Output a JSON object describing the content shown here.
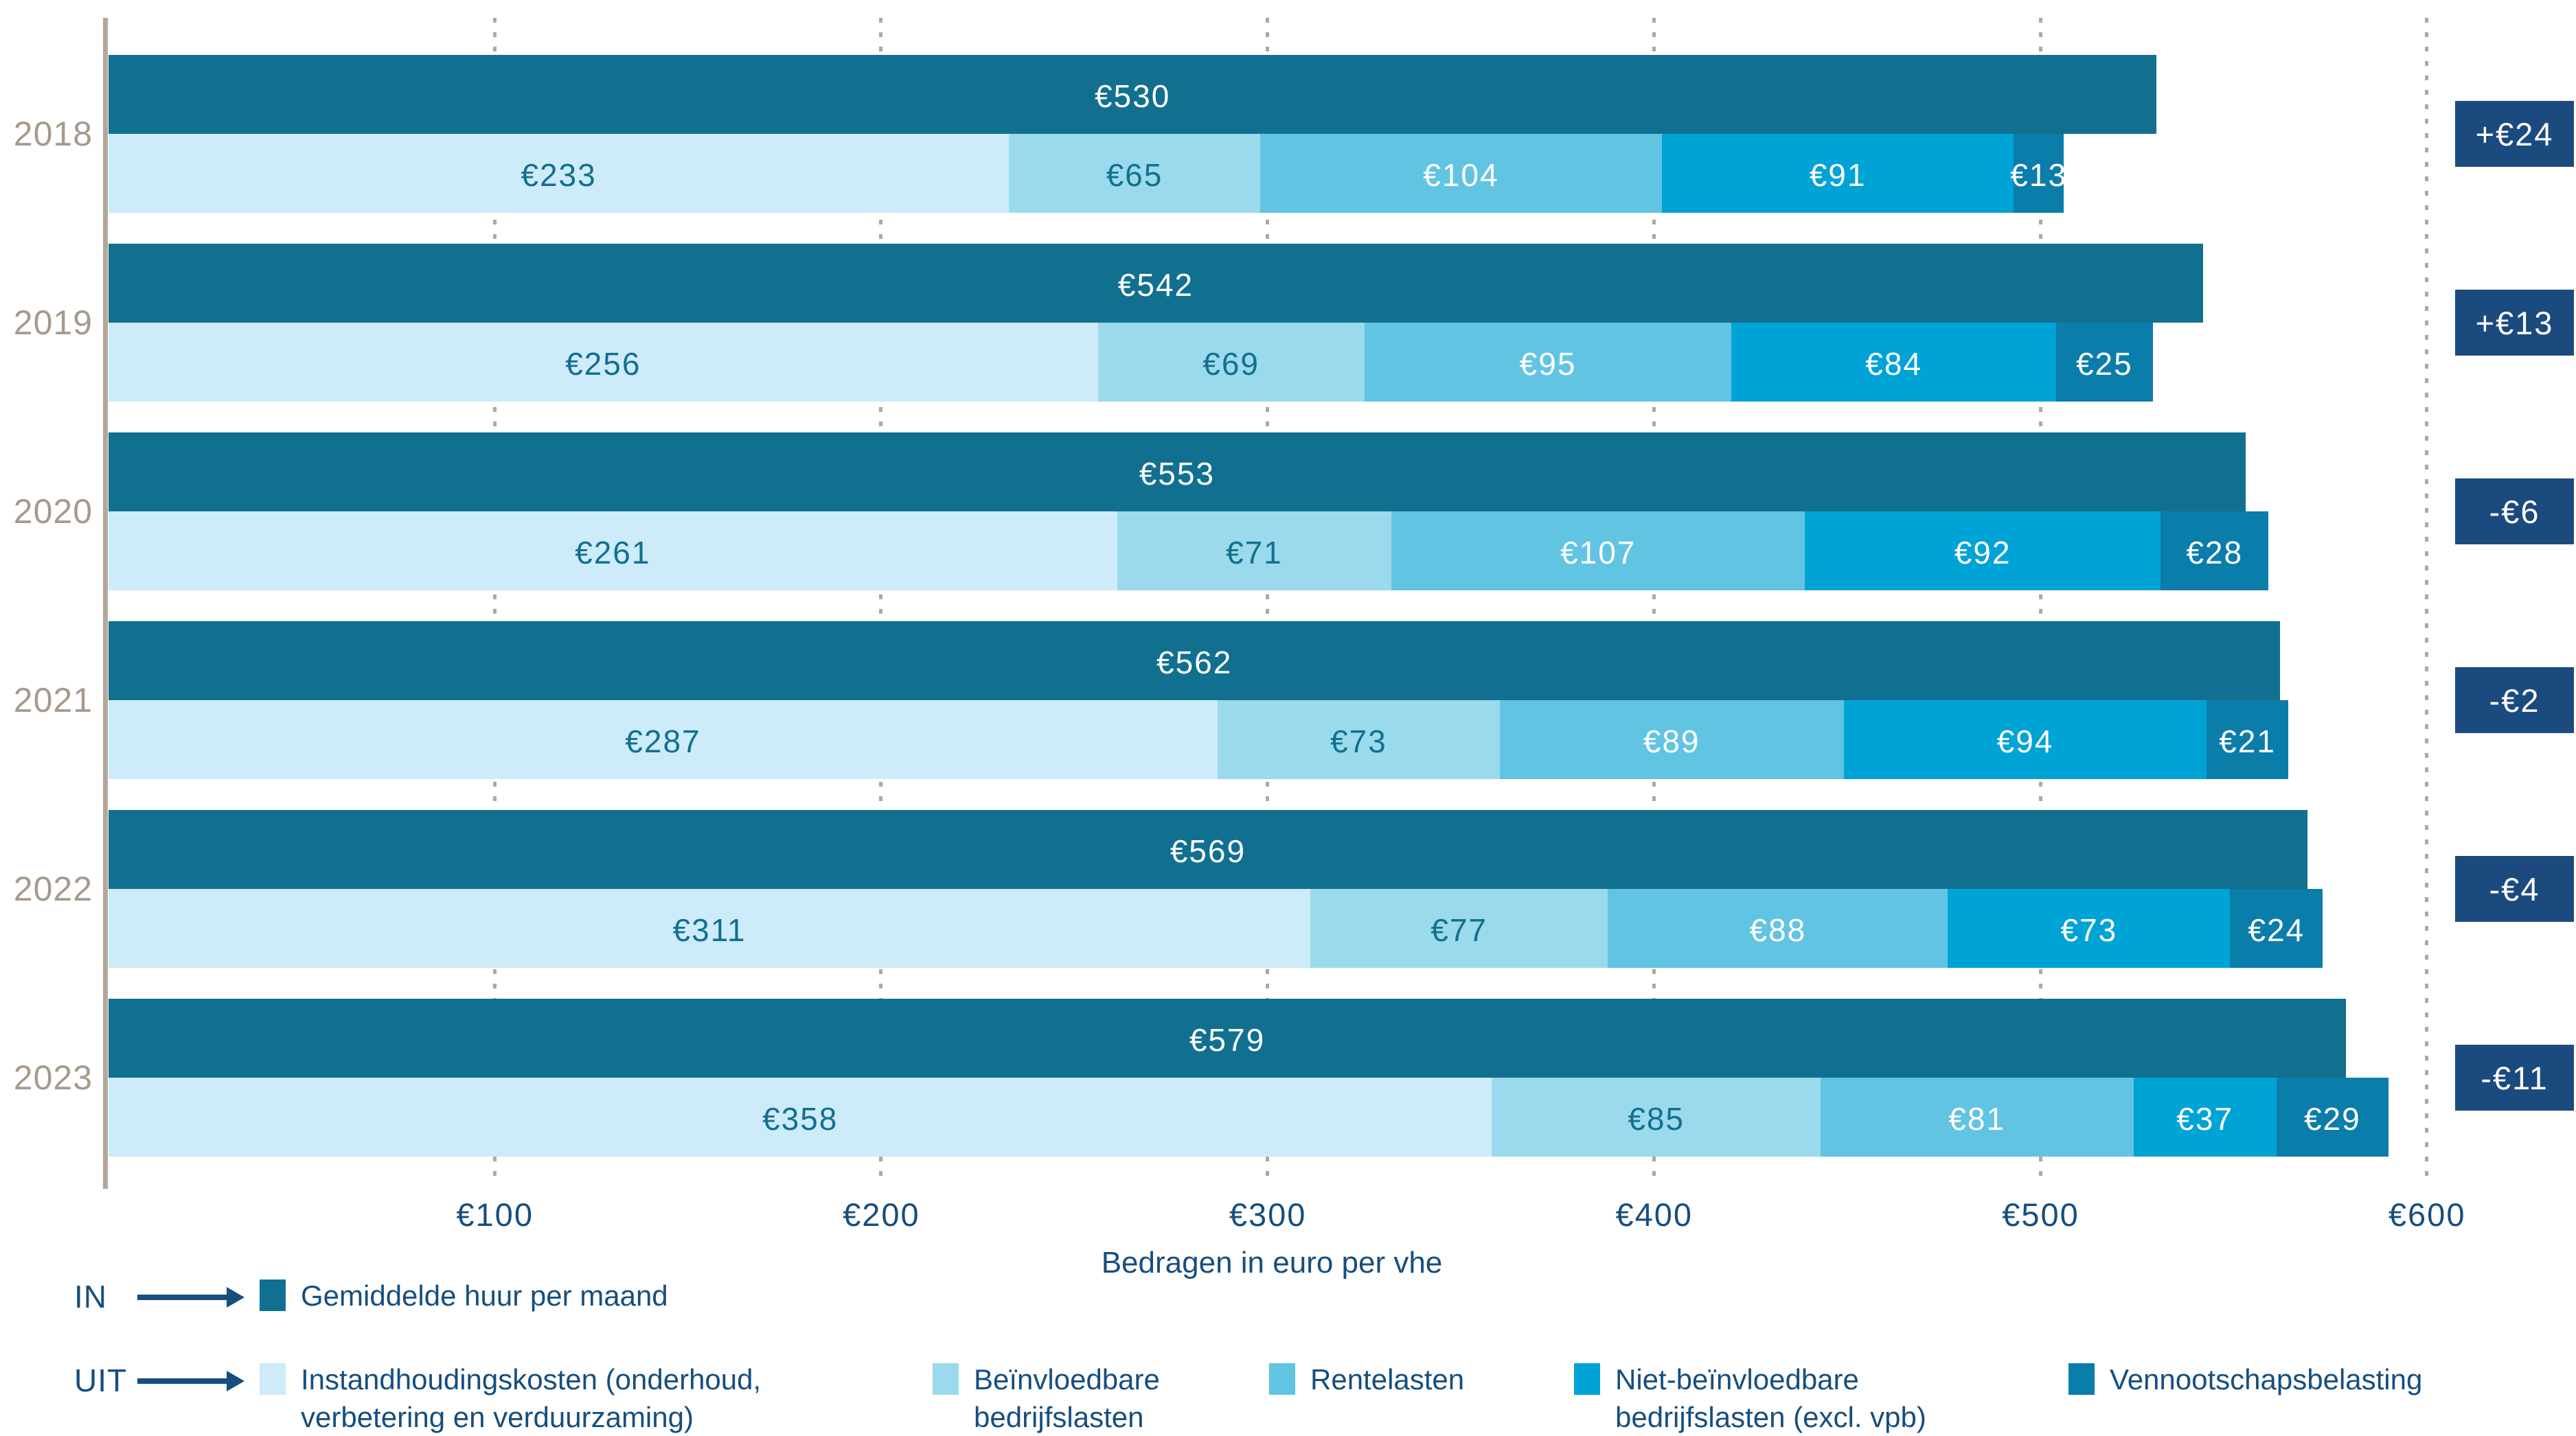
{
  "chart_data": {
    "type": "bar",
    "variant": "horizontal-grouped-stacked",
    "title": "",
    "xlabel": "Bedragen in euro per vhe",
    "ylabel": "",
    "xlim": [
      0,
      600
    ],
    "grid": "dotted-vertical",
    "legend_position": "bottom",
    "x_ticks": [
      {
        "value": 100,
        "label": "€100"
      },
      {
        "value": 200,
        "label": "€200"
      },
      {
        "value": 300,
        "label": "€300"
      },
      {
        "value": 400,
        "label": "€400"
      },
      {
        "value": 500,
        "label": "€500"
      },
      {
        "value": 600,
        "label": "€600"
      }
    ],
    "in_series_name": "Gemiddelde huur per maand",
    "uit_series_names": [
      "Instandhoudingskosten (onderhoud, verbetering en verduurzaming)",
      "Beïnvloedbare bedrijfslasten",
      "Rentelasten",
      "Niet-beïnvloedbare bedrijfslasten (excl. vpb)",
      "Vennootschapsbelasting"
    ],
    "rows": [
      {
        "year": "2018",
        "in": {
          "value": 530,
          "label": "€530"
        },
        "uit": [
          {
            "value": 233,
            "label": "€233"
          },
          {
            "value": 65,
            "label": "€65"
          },
          {
            "value": 104,
            "label": "€104"
          },
          {
            "value": 91,
            "label": "€91"
          },
          {
            "value": 13,
            "label": "€13"
          }
        ],
        "diff": {
          "value": 24,
          "label": "+€24"
        }
      },
      {
        "year": "2019",
        "in": {
          "value": 542,
          "label": "€542"
        },
        "uit": [
          {
            "value": 256,
            "label": "€256"
          },
          {
            "value": 69,
            "label": "€69"
          },
          {
            "value": 95,
            "label": "€95"
          },
          {
            "value": 84,
            "label": "€84"
          },
          {
            "value": 25,
            "label": "€25"
          }
        ],
        "diff": {
          "value": 13,
          "label": "+€13"
        }
      },
      {
        "year": "2020",
        "in": {
          "value": 553,
          "label": "€553"
        },
        "uit": [
          {
            "value": 261,
            "label": "€261"
          },
          {
            "value": 71,
            "label": "€71"
          },
          {
            "value": 107,
            "label": "€107"
          },
          {
            "value": 92,
            "label": "€92"
          },
          {
            "value": 28,
            "label": "€28"
          }
        ],
        "diff": {
          "value": -6,
          "label": "-€6"
        }
      },
      {
        "year": "2021",
        "in": {
          "value": 562,
          "label": "€562"
        },
        "uit": [
          {
            "value": 287,
            "label": "€287"
          },
          {
            "value": 73,
            "label": "€73"
          },
          {
            "value": 89,
            "label": "€89"
          },
          {
            "value": 94,
            "label": "€94"
          },
          {
            "value": 21,
            "label": "€21"
          }
        ],
        "diff": {
          "value": -2,
          "label": "-€2"
        }
      },
      {
        "year": "2022",
        "in": {
          "value": 569,
          "label": "€569"
        },
        "uit": [
          {
            "value": 311,
            "label": "€311"
          },
          {
            "value": 77,
            "label": "€77"
          },
          {
            "value": 88,
            "label": "€88"
          },
          {
            "value": 73,
            "label": "€73"
          },
          {
            "value": 24,
            "label": "€24"
          }
        ],
        "diff": {
          "value": -4,
          "label": "-€4"
        }
      },
      {
        "year": "2023",
        "in": {
          "value": 579,
          "label": "€579"
        },
        "uit": [
          {
            "value": 358,
            "label": "€358"
          },
          {
            "value": 85,
            "label": "€85"
          },
          {
            "value": 81,
            "label": "€81"
          },
          {
            "value": 37,
            "label": "€37"
          },
          {
            "value": 29,
            "label": "€29"
          }
        ],
        "diff": {
          "value": -11,
          "label": "-€11"
        }
      }
    ]
  },
  "legend": {
    "in_prefix": "IN",
    "uit_prefix": "UIT",
    "in_item": {
      "label": "Gemiddelde huur per maand",
      "color": "#11708F"
    },
    "uit_items": [
      {
        "lines": [
          "Instandhoudingskosten (onderhoud,",
          "verbetering en verduurzaming)"
        ],
        "color": "#CDEBF8"
      },
      {
        "lines": [
          "Beïnvloedbare",
          "bedrijfslasten"
        ],
        "color": "#9ADAEC"
      },
      {
        "lines": [
          "Rentelasten"
        ],
        "color": "#62C4E3"
      },
      {
        "lines": [
          "Niet-beïnvloedbare",
          "bedrijfslasten (excl. vpb)"
        ],
        "color": "#00A3D6"
      },
      {
        "lines": [
          "Vennootschapsbelasting"
        ],
        "color": "#0B7DAB"
      }
    ]
  },
  "colors": {
    "in_bar": "#11708F",
    "uit_segments": [
      "#CDEBF8",
      "#9ADAEC",
      "#62C4E3",
      "#00A3D6",
      "#0B7DAB"
    ],
    "badge_bg": "#1B4A7E",
    "value_text_dark": "#11708F",
    "value_text_light": "#FFFFFF",
    "year_text": "#A69A8D",
    "axis_text": "#164E7F",
    "grid": "#B3A79B"
  }
}
